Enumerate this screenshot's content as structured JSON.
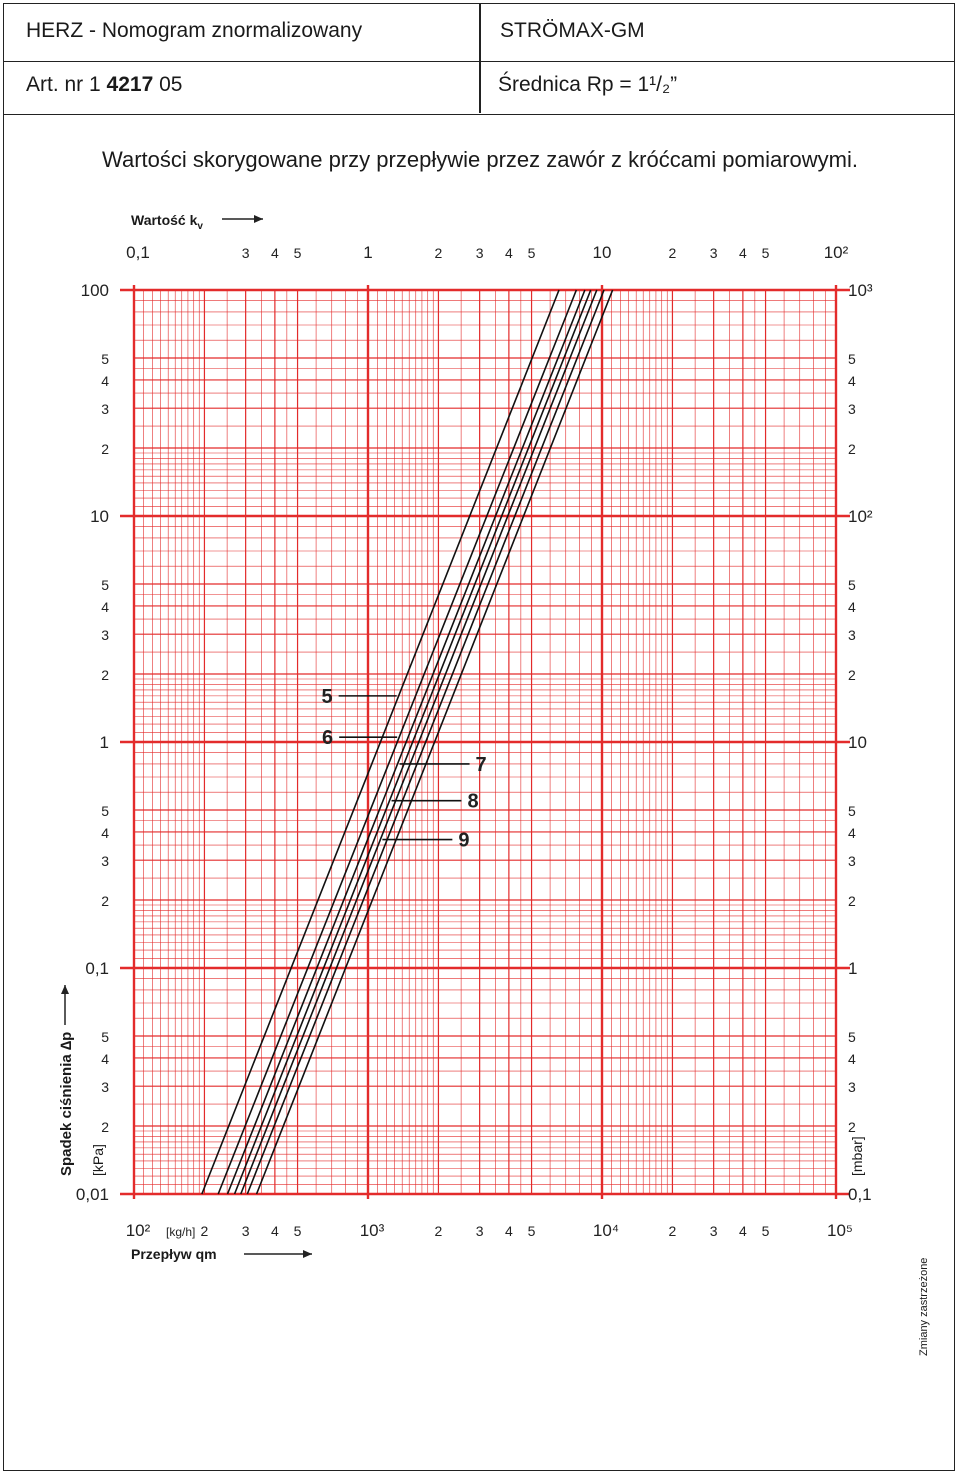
{
  "header": {
    "title_left": "HERZ - Nomogram znormalizowany",
    "title_right": "STRÖMAX-GM",
    "art_prefix": "Art. nr  1",
    "art_bold": "4217",
    "art_suffix": "05",
    "diameter": "Średnica Rp = 1¹/₂”"
  },
  "subtitle": "Wartości skorygowane przy przepływie przez zawór z króćcami pomiarowymi.",
  "labels": {
    "kv_axis": "Wartość k",
    "kv_sub": "v",
    "qm_axis": "Przepływ qm",
    "qm_unit": "[kg/h]",
    "y_axis": "Spadek ciśnienia ∆p",
    "kpa": "[kPa]",
    "mbar": "[mbar]",
    "reserved": "Zmiany zastrzeżone"
  },
  "colors": {
    "grid": "#e32b2b",
    "lines": "#111111"
  },
  "chart_data": {
    "type": "line",
    "title": "",
    "x_scale": "log",
    "y_scale": "log",
    "xlabel": "Przepływ qm [kg/h]",
    "ylabel": "Spadek ciśnienia ∆p [kPa]",
    "x2label": "Wartość kv",
    "y2label": "[mbar]",
    "xlim": [
      100,
      100000
    ],
    "ylim": [
      0.01,
      100
    ],
    "grid": true,
    "x_ticks": [
      {
        "v": 100,
        "t": "10²"
      },
      {
        "v": 200,
        "t": "2"
      },
      {
        "v": 300,
        "t": "3"
      },
      {
        "v": 400,
        "t": "4"
      },
      {
        "v": 500,
        "t": "5"
      },
      {
        "v": 1000,
        "t": "10³"
      },
      {
        "v": 2000,
        "t": "2"
      },
      {
        "v": 3000,
        "t": "3"
      },
      {
        "v": 4000,
        "t": "4"
      },
      {
        "v": 5000,
        "t": "5"
      },
      {
        "v": 10000,
        "t": "10⁴"
      },
      {
        "v": 20000,
        "t": "2"
      },
      {
        "v": 30000,
        "t": "3"
      },
      {
        "v": 40000,
        "t": "4"
      },
      {
        "v": 50000,
        "t": "5"
      },
      {
        "v": 100000,
        "t": "10⁵"
      }
    ],
    "x2_ticks": [
      {
        "v": 100,
        "t": "0,1"
      },
      {
        "v": 300,
        "t": "3"
      },
      {
        "v": 400,
        "t": "4"
      },
      {
        "v": 500,
        "t": "5"
      },
      {
        "v": 1000,
        "t": "1"
      },
      {
        "v": 2000,
        "t": "2"
      },
      {
        "v": 3000,
        "t": "3"
      },
      {
        "v": 4000,
        "t": "4"
      },
      {
        "v": 5000,
        "t": "5"
      },
      {
        "v": 10000,
        "t": "10"
      },
      {
        "v": 20000,
        "t": "2"
      },
      {
        "v": 30000,
        "t": "3"
      },
      {
        "v": 40000,
        "t": "4"
      },
      {
        "v": 50000,
        "t": "5"
      },
      {
        "v": 100000,
        "t": "10²"
      }
    ],
    "y_ticks": [
      {
        "v": 100,
        "t": "100"
      },
      {
        "v": 50,
        "t": "5"
      },
      {
        "v": 40,
        "t": "4"
      },
      {
        "v": 30,
        "t": "3"
      },
      {
        "v": 20,
        "t": "2"
      },
      {
        "v": 10,
        "t": "10"
      },
      {
        "v": 5,
        "t": "5"
      },
      {
        "v": 4,
        "t": "4"
      },
      {
        "v": 3,
        "t": "3"
      },
      {
        "v": 2,
        "t": "2"
      },
      {
        "v": 1,
        "t": "1"
      },
      {
        "v": 0.5,
        "t": "5"
      },
      {
        "v": 0.4,
        "t": "4"
      },
      {
        "v": 0.3,
        "t": "3"
      },
      {
        "v": 0.2,
        "t": "2"
      },
      {
        "v": 0.1,
        "t": "0,1"
      },
      {
        "v": 0.05,
        "t": "5"
      },
      {
        "v": 0.04,
        "t": "4"
      },
      {
        "v": 0.03,
        "t": "3"
      },
      {
        "v": 0.02,
        "t": "2"
      },
      {
        "v": 0.01,
        "t": "0,01"
      }
    ],
    "y2_ticks": [
      {
        "v": 100,
        "t": "10³"
      },
      {
        "v": 50,
        "t": "5"
      },
      {
        "v": 40,
        "t": "4"
      },
      {
        "v": 30,
        "t": "3"
      },
      {
        "v": 20,
        "t": "2"
      },
      {
        "v": 10,
        "t": "10²"
      },
      {
        "v": 5,
        "t": "5"
      },
      {
        "v": 4,
        "t": "4"
      },
      {
        "v": 3,
        "t": "3"
      },
      {
        "v": 2,
        "t": "2"
      },
      {
        "v": 1,
        "t": "10"
      },
      {
        "v": 0.5,
        "t": "5"
      },
      {
        "v": 0.4,
        "t": "4"
      },
      {
        "v": 0.3,
        "t": "3"
      },
      {
        "v": 0.2,
        "t": "2"
      },
      {
        "v": 0.1,
        "t": "1"
      },
      {
        "v": 0.05,
        "t": "5"
      },
      {
        "v": 0.04,
        "t": "4"
      },
      {
        "v": 0.03,
        "t": "3"
      },
      {
        "v": 0.02,
        "t": "2"
      },
      {
        "v": 0.01,
        "t": "0,1"
      }
    ],
    "series": [
      {
        "name": "5",
        "points": [
          [
            195,
            0.01
          ],
          [
            6550,
            100
          ]
        ],
        "label_at_dp": 1.6,
        "label_side": "left"
      },
      {
        "name": "6",
        "points": [
          [
            229,
            0.01
          ],
          [
            7770,
            100
          ]
        ],
        "label_at_dp": 1.05,
        "label_side": "left"
      },
      {
        "name": "7",
        "points": [
          [
            251,
            0.01
          ],
          [
            8450,
            100
          ]
        ],
        "label_at_dp": 0.8,
        "label_side": "right"
      },
      {
        "name": "8",
        "points": [
          [
            269,
            0.01
          ],
          [
            8950,
            100
          ]
        ],
        "label_at_dp": 0.55,
        "label_side": "right"
      },
      {
        "name": "9",
        "points": [
          [
            286,
            0.01
          ],
          [
            9500,
            100
          ]
        ],
        "label_at_dp": 0.37,
        "label_side": "right"
      },
      {
        "name": "",
        "points": [
          [
            305,
            0.01
          ],
          [
            10200,
            100
          ]
        ]
      },
      {
        "name": "",
        "points": [
          [
            334,
            0.01
          ],
          [
            11100,
            100
          ]
        ]
      }
    ]
  }
}
